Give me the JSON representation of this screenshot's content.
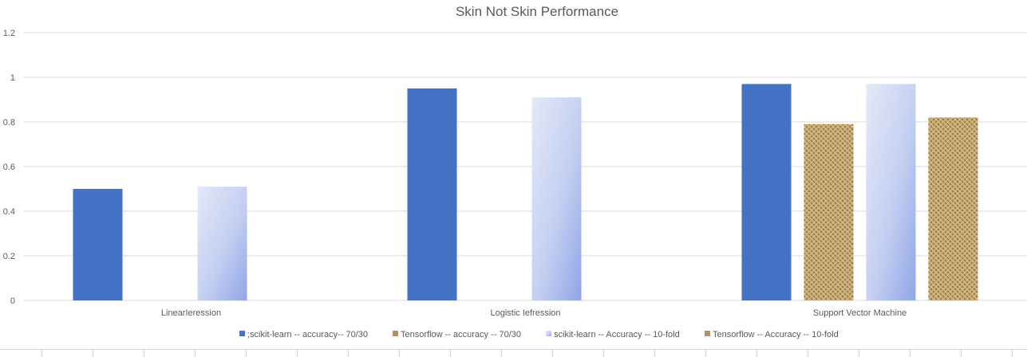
{
  "chart_data": {
    "type": "bar",
    "title": "Skin Not Skin Performance",
    "categories": [
      "LinearIeression",
      "Logistic Iefression",
      "Support Vector Machine"
    ],
    "series": [
      {
        "name": ";scikit-learn -- accuracy-- 70/30",
        "values": [
          0.5,
          0.95,
          0.97
        ],
        "color": "#4472c4",
        "fill": "solid"
      },
      {
        "name": "Tensorflow -- accuracy -- 70/30",
        "values": [
          null,
          null,
          0.79
        ],
        "color": "#b89860",
        "fill": "burlap"
      },
      {
        "name": "scikit-learn -- Accuracy -- 10-fold",
        "values": [
          0.51,
          0.91,
          0.97
        ],
        "color": "#a7b8ec",
        "fill": "gradient"
      },
      {
        "name": "Tensorflow -- Accuracy -- 10-fold",
        "values": [
          null,
          null,
          0.82
        ],
        "color": "#b89860",
        "fill": "burlap"
      }
    ],
    "ylim": [
      0,
      1.2
    ],
    "yticks": [
      "0",
      "0.2",
      "0.4",
      "0.6",
      "0.8",
      "1",
      "1.2"
    ],
    "grid": true,
    "legend": "bottom"
  }
}
